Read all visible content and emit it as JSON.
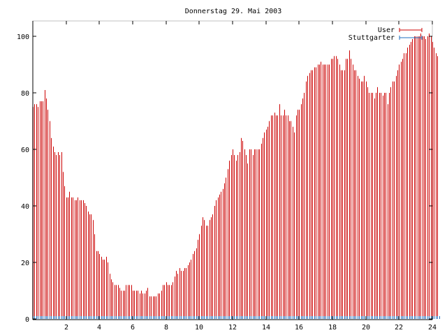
{
  "colors": {
    "user": "#cc0000",
    "stuttgarter": "#1f6fbf",
    "axis": "#000000",
    "frame": "#c0c0c0"
  },
  "chart_data": {
    "type": "bar",
    "title": "Donnerstag 29. Mai 2003",
    "xlabel": "",
    "ylabel": "",
    "xlim": [
      0,
      24
    ],
    "ylim": [
      0,
      105
    ],
    "xticks": [
      "2",
      "4",
      "6",
      "8",
      "10",
      "12",
      "14",
      "16",
      "18",
      "20",
      "22",
      "24"
    ],
    "yticks": [
      "0",
      "20",
      "40",
      "60",
      "80",
      "100"
    ],
    "grid": false,
    "legend_position": "top-right",
    "series": [
      {
        "name": "User",
        "step_hours": 0.1,
        "values": [
          75,
          76,
          76,
          75,
          77,
          77,
          77,
          81,
          78,
          74,
          70,
          64,
          61,
          59,
          58,
          59,
          58,
          59,
          52,
          47,
          43,
          43,
          45,
          43,
          43,
          42,
          42,
          43,
          42,
          42,
          42,
          41,
          40,
          38,
          37,
          37,
          35,
          30,
          24,
          24,
          23,
          22,
          21,
          21,
          22,
          20,
          16,
          14,
          13,
          12,
          12,
          12,
          11,
          10,
          10,
          10,
          12,
          12,
          12,
          12,
          10,
          10,
          10,
          10,
          9,
          10,
          9,
          9,
          10,
          11,
          8,
          8,
          8,
          8,
          8,
          9,
          9,
          10,
          12,
          12,
          13,
          12,
          12,
          12,
          13,
          15,
          17,
          16,
          18,
          17,
          17,
          18,
          18,
          19,
          20,
          21,
          23,
          24,
          25,
          28,
          30,
          33,
          36,
          35,
          33,
          33,
          35,
          36,
          37,
          40,
          42,
          43,
          44,
          45,
          46,
          48,
          50,
          53,
          56,
          58,
          60,
          58,
          56,
          58,
          59,
          64,
          63,
          60,
          58,
          55,
          60,
          60,
          58,
          60,
          60,
          60,
          60,
          62,
          64,
          66,
          67,
          68,
          70,
          72,
          72,
          73,
          72,
          72,
          76,
          72,
          72,
          74,
          72,
          72,
          70,
          70,
          68,
          66,
          72,
          74,
          74,
          76,
          78,
          80,
          84,
          86,
          87,
          88,
          88,
          89,
          89,
          90,
          90,
          91,
          90,
          90,
          90,
          90,
          90,
          92,
          92,
          93,
          93,
          92,
          90,
          88,
          88,
          88,
          92,
          92,
          95,
          92,
          90,
          88,
          88,
          86,
          85,
          84,
          84,
          86,
          84,
          82,
          80,
          80,
          80,
          78,
          80,
          82,
          80,
          80,
          79,
          80,
          80,
          76,
          80,
          82,
          84,
          84,
          86,
          88,
          90,
          91,
          92,
          94,
          94,
          96,
          97,
          98,
          99,
          100,
          100,
          100,
          100,
          101,
          100,
          100,
          99,
          100,
          101,
          100,
          98,
          96,
          94,
          93
        ]
      },
      {
        "name": "Stuttgarter",
        "step_hours": 0.1,
        "values": [
          1,
          1,
          1,
          1,
          1,
          1,
          1,
          1,
          1,
          1,
          1,
          1,
          1,
          1,
          1,
          1,
          1,
          1,
          1,
          1,
          1,
          1,
          1,
          1,
          1,
          1,
          1,
          1,
          1,
          1,
          1,
          1,
          1,
          1,
          1,
          1,
          1,
          1,
          1,
          1,
          1,
          1,
          1,
          1,
          1,
          1,
          1,
          1,
          1,
          1,
          1,
          1,
          1,
          1,
          1,
          1,
          1,
          1,
          1,
          1,
          1,
          1,
          1,
          1,
          1,
          1,
          1,
          1,
          1,
          1,
          1,
          1,
          1,
          1,
          1,
          1,
          1,
          1,
          1,
          1,
          1,
          1,
          1,
          1,
          1,
          1,
          1,
          1,
          1,
          1,
          1,
          1,
          1,
          1,
          1,
          1,
          1,
          1,
          1,
          1,
          1,
          1,
          1,
          1,
          1,
          1,
          1,
          1,
          1,
          1,
          1,
          1,
          1,
          1,
          1,
          1,
          1,
          1,
          1,
          1,
          1,
          1,
          1,
          1,
          1,
          1,
          1,
          1,
          1,
          1,
          1,
          1,
          1,
          1,
          1,
          1,
          1,
          1,
          1,
          1,
          1,
          1,
          1,
          1,
          1,
          1,
          1,
          1,
          1,
          1,
          1,
          1,
          1,
          1,
          1,
          1,
          1,
          1,
          1,
          1,
          1,
          1,
          1,
          1,
          1,
          1,
          1,
          1,
          1,
          1,
          1,
          1,
          1,
          1,
          1,
          1,
          1,
          1,
          1,
          1,
          1,
          1,
          1,
          1,
          1,
          1,
          1,
          1,
          1,
          1,
          1,
          1,
          1,
          1,
          1,
          1,
          1,
          1,
          1,
          1,
          1,
          1,
          1,
          1,
          1,
          1,
          1,
          1,
          1,
          1,
          1,
          1,
          1,
          1,
          1,
          1,
          1,
          1,
          1,
          1,
          1,
          1,
          1,
          1,
          1,
          1,
          1,
          1,
          1,
          1,
          1,
          1,
          1,
          1,
          1,
          1,
          1,
          1,
          1,
          1,
          1,
          1,
          1,
          1,
          1
        ]
      }
    ]
  }
}
